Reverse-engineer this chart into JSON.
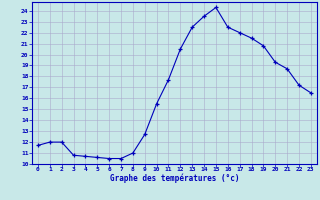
{
  "x": [
    0,
    1,
    2,
    3,
    4,
    5,
    6,
    7,
    8,
    9,
    10,
    11,
    12,
    13,
    14,
    15,
    16,
    17,
    18,
    19,
    20,
    21,
    22,
    23
  ],
  "y": [
    11.7,
    12.0,
    12.0,
    10.8,
    10.7,
    10.6,
    10.5,
    10.5,
    11.0,
    12.7,
    15.5,
    17.7,
    20.5,
    22.5,
    23.5,
    24.3,
    22.5,
    22.0,
    21.5,
    20.8,
    19.3,
    18.7,
    17.2,
    16.5
  ],
  "xlabel": "Graphe des températures (°c)",
  "xlim": [
    -0.5,
    23.5
  ],
  "ylim": [
    10,
    24.8
  ],
  "yticks": [
    10,
    11,
    12,
    13,
    14,
    15,
    16,
    17,
    18,
    19,
    20,
    21,
    22,
    23,
    24
  ],
  "xticks": [
    0,
    1,
    2,
    3,
    4,
    5,
    6,
    7,
    8,
    9,
    10,
    11,
    12,
    13,
    14,
    15,
    16,
    17,
    18,
    19,
    20,
    21,
    22,
    23
  ],
  "line_color": "#0000bb",
  "marker": "+",
  "bg_color": "#c8e8e8",
  "grid_color": "#aaaacc",
  "axis_label_color": "#0000bb",
  "tick_label_color": "#0000bb",
  "spine_color": "#0000bb"
}
